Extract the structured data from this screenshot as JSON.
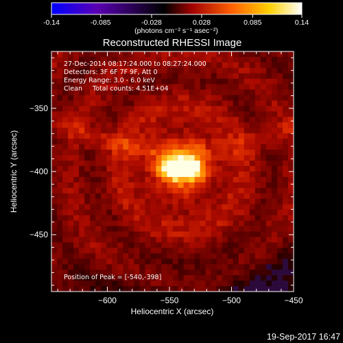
{
  "colorbar": {
    "tick_labels": [
      "-0.14",
      "-0.085",
      "-0.028",
      "0.028",
      "0.085",
      "0.14"
    ],
    "tick_values": [
      -0.14,
      -0.085,
      -0.028,
      0.028,
      0.085,
      0.14
    ],
    "range": [
      -0.14,
      0.14
    ],
    "unit_label": "(photons cm⁻² s⁻¹ asec⁻²)",
    "colormap": [
      "#0000ff",
      "#5a00b4",
      "#000000",
      "#a00000",
      "#ff6000",
      "#ffd000",
      "#ffffff"
    ]
  },
  "chart_data": {
    "type": "heatmap",
    "title": "Reconstructed RHESSI Image",
    "xlabel": "Heliocentric X (arcsec)",
    "ylabel": "Heliocentric Y (arcsec)",
    "xlim": [
      -645,
      -450
    ],
    "ylim": [
      -495,
      -305
    ],
    "x_ticks": [
      -600,
      -550,
      -500,
      -450
    ],
    "x_tick_labels": [
      "−600",
      "−550",
      "−500",
      "−450"
    ],
    "y_ticks": [
      -450,
      -400,
      -350
    ],
    "y_tick_labels": [
      "−450",
      "−400",
      "−350"
    ],
    "peak": [
      -540,
      -398
    ],
    "info_lines": [
      "27-Dec-2014 08:17:24.000 to 08:27:24.000",
      "Detectors: 3F 6F 7F 9F, Att 0",
      "Energy Range: 3.0 - 6.0 keV",
      "Clean     Total counts: 4.51E+04"
    ],
    "peak_label": "Position of Peak = [-540,-398]"
  },
  "timestamp": "19-Sep-2017 16:47"
}
